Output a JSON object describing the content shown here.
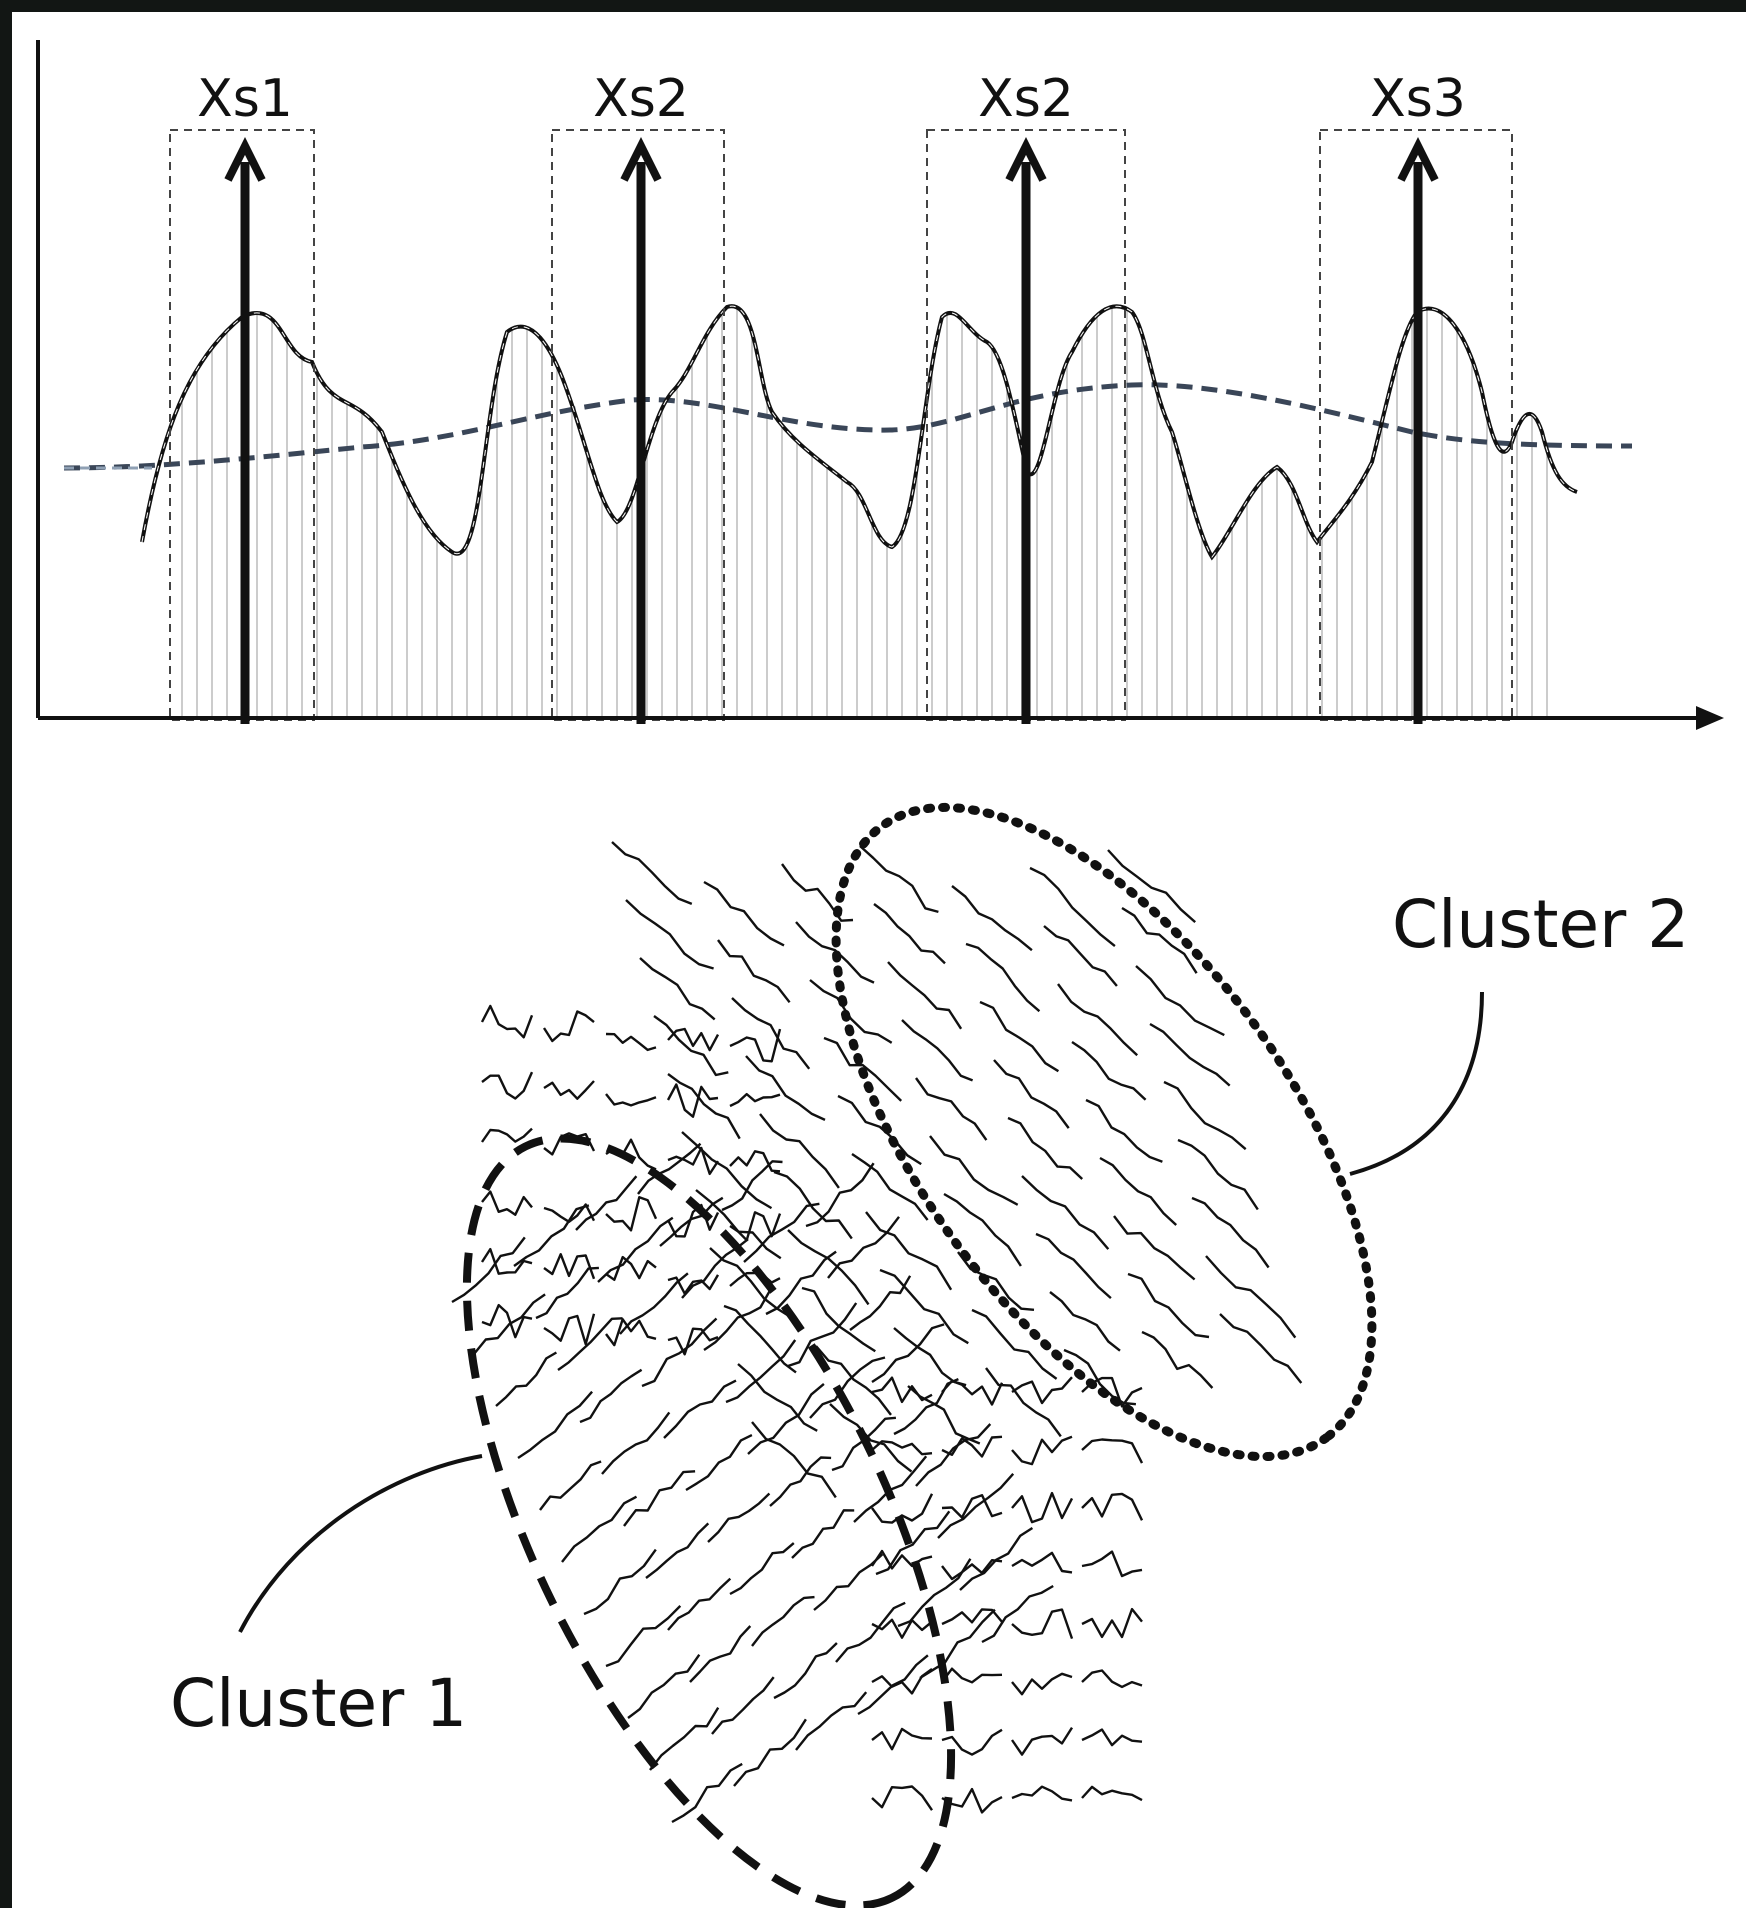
{
  "figure": {
    "markers": [
      {
        "label": "Xs1"
      },
      {
        "label": "Xs2"
      },
      {
        "label": "Xs2"
      },
      {
        "label": "Xs3"
      }
    ],
    "clusters": [
      {
        "label": "Cluster 1"
      },
      {
        "label": "Cluster 2"
      }
    ],
    "colors": {
      "background": "#ffffff",
      "ink": "#111111",
      "trend": "#3a4658",
      "sample_lines": "#bbbbbb",
      "outer_frame": "#121614"
    },
    "icons": [
      "arrow-up-icon",
      "axis-arrow-icon"
    ]
  }
}
